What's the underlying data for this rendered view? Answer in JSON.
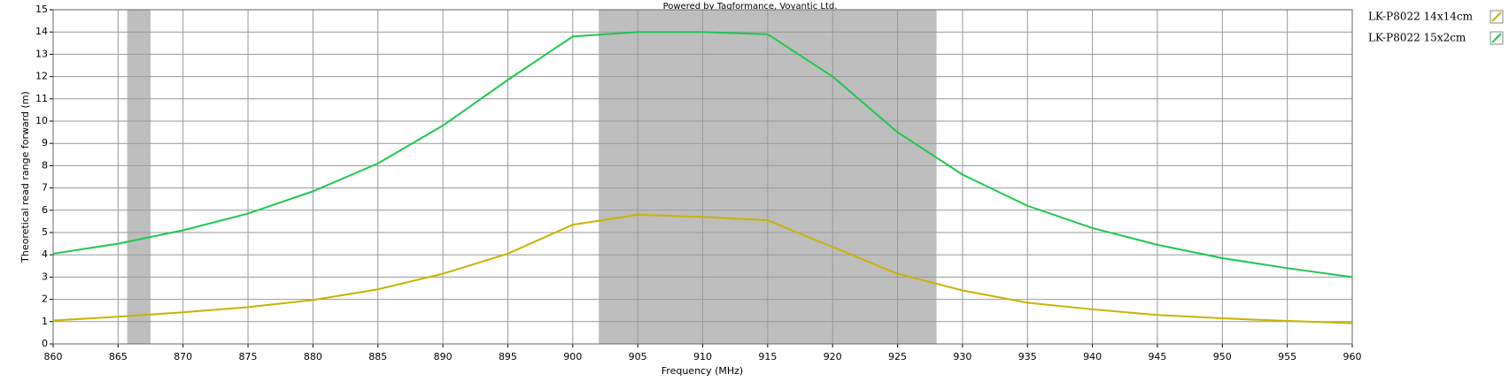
{
  "chart_data": {
    "type": "line",
    "title": "Powered by Tagformance, Voyantic Ltd.",
    "x_label": "Frequency (MHz)",
    "y_label": "Theoretical read range forward (m)",
    "x": [
      860,
      865,
      870,
      875,
      880,
      885,
      890,
      895,
      900,
      905,
      910,
      915,
      920,
      925,
      930,
      935,
      940,
      945,
      950,
      955,
      960
    ],
    "series": [
      {
        "name": "LK-P8022 14x14cm",
        "color": "#c8b400",
        "values": [
          1.05,
          1.22,
          1.42,
          1.65,
          1.97,
          2.45,
          3.15,
          4.05,
          5.35,
          5.8,
          5.7,
          5.55,
          4.35,
          3.15,
          2.4,
          1.85,
          1.55,
          1.3,
          1.15,
          1.03,
          0.93
        ]
      },
      {
        "name": "LK-P8022 15x2cm",
        "color": "#1ec850",
        "values": [
          4.05,
          4.5,
          5.1,
          5.85,
          6.85,
          8.1,
          9.8,
          11.85,
          13.8,
          14.0,
          14.0,
          13.9,
          12.0,
          9.5,
          7.6,
          6.2,
          5.2,
          4.45,
          3.85,
          3.4,
          3.0
        ]
      }
    ],
    "bands": [
      [
        865.7,
        867.5
      ],
      [
        902,
        928
      ]
    ],
    "band_color": "#bebebe",
    "xlim": [
      860,
      960
    ],
    "xticks": [
      860,
      865,
      870,
      875,
      880,
      885,
      890,
      895,
      900,
      905,
      910,
      915,
      920,
      925,
      930,
      935,
      940,
      945,
      950,
      955,
      960
    ],
    "ylim": [
      0,
      15
    ],
    "yticks": [
      0,
      1,
      2,
      3,
      4,
      5,
      6,
      7,
      8,
      9,
      10,
      11,
      12,
      13,
      14,
      15
    ],
    "grid": true,
    "legend": "right"
  }
}
